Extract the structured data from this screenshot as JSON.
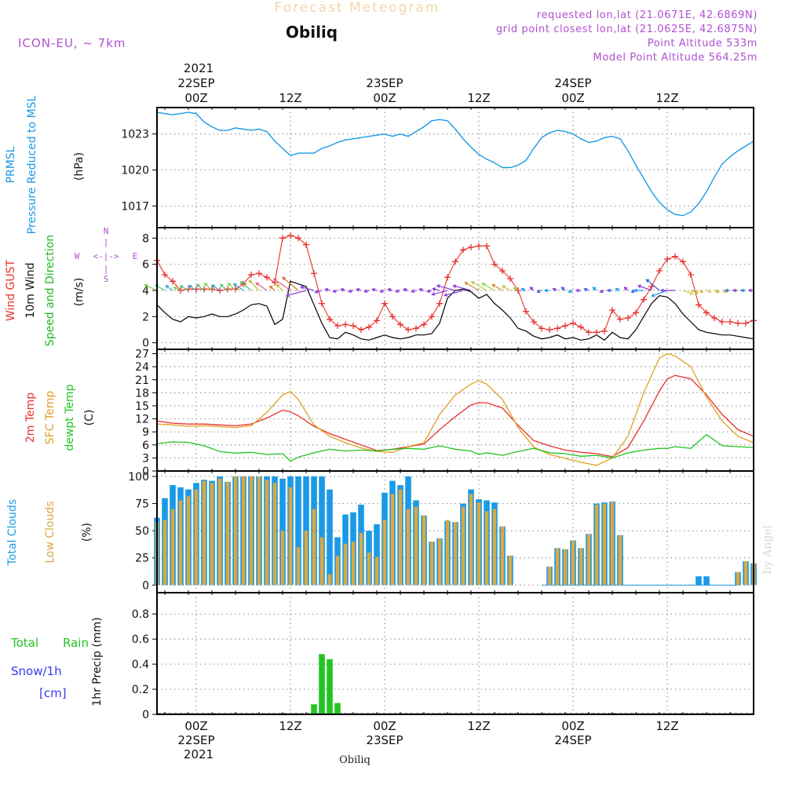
{
  "header": {
    "product": "Forecast Meteogram",
    "location": "Obiliq",
    "model": "ICON-EU, ~ 7km",
    "requested": "requested lon,lat (21.0671E, 42.6869N)",
    "gridpoint": "grid point closest lon,lat (21.0625E, 42.6875N)",
    "point_alt": "Point Altitude 533m",
    "model_alt": "Model Point Altitude 564.25m",
    "watermark": "by Angel",
    "footer_location": "Obiliq"
  },
  "time_axis": {
    "top_year": "2021",
    "top_dates": [
      {
        "t": 0,
        "label": "22SEP"
      },
      {
        "t": 24,
        "label": "23SEP"
      },
      {
        "t": 48,
        "label": "24SEP"
      }
    ],
    "hour_ticks": [
      {
        "t": 0,
        "label": "00Z"
      },
      {
        "t": 12,
        "label": "12Z"
      },
      {
        "t": 24,
        "label": "00Z"
      },
      {
        "t": 36,
        "label": "12Z"
      },
      {
        "t": 48,
        "label": "00Z"
      },
      {
        "t": 60,
        "label": "12Z"
      }
    ],
    "bottom_dates": [
      {
        "t": 0,
        "label": "22SEP"
      },
      {
        "t": 24,
        "label": "23SEP"
      },
      {
        "t": 48,
        "label": "24SEP"
      }
    ],
    "bottom_year": "2021",
    "range": [
      -5,
      71
    ]
  },
  "colors": {
    "pressure": "#1a9ae6",
    "gust": "#e8322e",
    "wind": "#000000",
    "wind_label": "#22b822",
    "temp": "#e8322e",
    "sfc_temp": "#e0a020",
    "dewpt": "#22c422",
    "total_cloud": "#1a9ae6",
    "low_cloud": "#dba840",
    "rain": "#22c422",
    "snow": "#3a3af0",
    "model_text": "#b050d0",
    "compass": "#b050d0",
    "product_title": "#f3d6a8"
  },
  "chart_data": [
    {
      "type": "line",
      "panel": "pressure",
      "ylabel_lines": [
        "PRMSL",
        "Pressure Reduced to MSL"
      ],
      "unit": "(hPa)",
      "yticks": [
        1017,
        1020,
        1023
      ],
      "ylim": [
        1015.2,
        1025.2
      ],
      "x": [
        -5,
        -4,
        -3,
        -2,
        -1,
        0,
        1,
        2,
        3,
        4,
        5,
        6,
        7,
        8,
        9,
        10,
        11,
        12,
        13,
        14,
        15,
        16,
        17,
        18,
        19,
        20,
        21,
        22,
        23,
        24,
        25,
        26,
        27,
        28,
        29,
        30,
        31,
        32,
        33,
        34,
        35,
        36,
        37,
        38,
        39,
        40,
        41,
        42,
        43,
        44,
        45,
        46,
        47,
        48,
        49,
        50,
        51,
        52,
        53,
        54,
        55,
        56,
        57,
        58,
        59,
        60,
        61,
        62,
        63,
        64,
        65,
        66,
        67,
        68,
        69,
        70,
        71
      ],
      "series": [
        {
          "values": [
            1024.8,
            1024.7,
            1024.6,
            1024.7,
            1024.8,
            1024.7,
            1024.0,
            1023.6,
            1023.3,
            1023.3,
            1023.5,
            1023.4,
            1023.3,
            1023.4,
            1023.2,
            1022.4,
            1021.8,
            1021.2,
            1021.4,
            1021.4,
            1021.4,
            1021.8,
            1022.0,
            1022.3,
            1022.5,
            1022.6,
            1022.7,
            1022.8,
            1022.9,
            1023.0,
            1022.8,
            1023.0,
            1022.8,
            1023.2,
            1023.6,
            1024.1,
            1024.2,
            1024.1,
            1023.4,
            1022.6,
            1021.9,
            1021.3,
            1020.9,
            1020.6,
            1020.2,
            1020.2,
            1020.4,
            1020.8,
            1021.8,
            1022.7,
            1023.1,
            1023.3,
            1023.2,
            1023.0,
            1022.6,
            1022.3,
            1022.4,
            1022.7,
            1022.8,
            1022.6,
            1021.6,
            1020.4,
            1019.3,
            1018.2,
            1017.3,
            1016.7,
            1016.3,
            1016.2,
            1016.5,
            1017.2,
            1018.2,
            1019.4,
            1020.5,
            1021.1,
            1021.6,
            1022.0,
            1022.4
          ]
        }
      ]
    },
    {
      "type": "line",
      "panel": "wind",
      "ylabel_lines": [
        "Wind GUST",
        "10m Wind",
        "Speed and Direction"
      ],
      "unit": "(m/s)",
      "compass": {
        "n": "N",
        "s": "S",
        "w": "W",
        "e": "E"
      },
      "yticks": [
        0,
        2,
        4,
        6,
        8
      ],
      "ylim": [
        -0.5,
        8.8
      ],
      "x": [
        -5,
        -4,
        -3,
        -2,
        -1,
        0,
        1,
        2,
        3,
        4,
        5,
        6,
        7,
        8,
        9,
        10,
        11,
        12,
        13,
        14,
        15,
        16,
        17,
        18,
        19,
        20,
        21,
        22,
        23,
        24,
        25,
        26,
        27,
        28,
        29,
        30,
        31,
        32,
        33,
        34,
        35,
        36,
        37,
        38,
        39,
        40,
        41,
        42,
        43,
        44,
        45,
        46,
        47,
        48,
        49,
        50,
        51,
        52,
        53,
        54,
        55,
        56,
        57,
        58,
        59,
        60,
        61,
        62,
        63,
        64,
        65,
        66,
        67,
        68,
        69,
        70,
        71
      ],
      "series": [
        {
          "name": "gust",
          "values": [
            6.3,
            5.2,
            4.7,
            4.0,
            4.1,
            4.1,
            4.1,
            4.1,
            4.0,
            4.1,
            4.1,
            4.5,
            5.2,
            5.3,
            5.0,
            4.6,
            8.0,
            8.2,
            8.0,
            7.5,
            5.3,
            3.0,
            1.8,
            1.3,
            1.4,
            1.3,
            1.0,
            1.2,
            1.7,
            3.0,
            2.0,
            1.4,
            1.0,
            1.1,
            1.4,
            2.0,
            3.0,
            5.0,
            6.2,
            7.1,
            7.3,
            7.4,
            7.4,
            6.0,
            5.5,
            4.9,
            4.0,
            2.4,
            1.6,
            1.1,
            1.0,
            1.1,
            1.3,
            1.5,
            1.2,
            0.8,
            0.8,
            0.9,
            2.5,
            1.8,
            1.9,
            2.3,
            3.3,
            4.3,
            5.5,
            6.4,
            6.6,
            6.2,
            5.2,
            2.9,
            2.3,
            1.9,
            1.6,
            1.6,
            1.5,
            1.5,
            1.7
          ]
        },
        {
          "name": "wind",
          "values": [
            2.9,
            2.3,
            1.8,
            1.6,
            2.0,
            1.9,
            2.0,
            2.2,
            2.0,
            2.0,
            2.2,
            2.5,
            2.9,
            3.0,
            2.8,
            1.4,
            1.8,
            4.7,
            4.5,
            4.3,
            2.9,
            1.5,
            0.4,
            0.3,
            0.8,
            0.6,
            0.3,
            0.2,
            0.4,
            0.6,
            0.4,
            0.3,
            0.4,
            0.6,
            0.6,
            0.7,
            1.5,
            3.4,
            4.0,
            4.1,
            3.9,
            3.4,
            3.7,
            3.0,
            2.5,
            1.9,
            1.1,
            0.9,
            0.5,
            0.3,
            0.4,
            0.6,
            0.3,
            0.4,
            0.2,
            0.3,
            0.6,
            0.2,
            0.8,
            0.4,
            0.3,
            1.0,
            2.0,
            3.0,
            3.6,
            3.5,
            3.0,
            2.2,
            1.6,
            1.0,
            0.8,
            0.7,
            0.6,
            0.6,
            0.5,
            0.4,
            0.3
          ]
        }
      ]
    },
    {
      "type": "line",
      "panel": "temperature",
      "ylabel_lines": [
        "2m Temp",
        "SFC Temp",
        "dewpt Temp"
      ],
      "unit": "(C)",
      "yticks": [
        0,
        3,
        6,
        9,
        12,
        15,
        18,
        21,
        24,
        27
      ],
      "ylim": [
        0,
        28
      ],
      "x": [
        -5,
        -3,
        -1,
        1,
        3,
        5,
        7,
        9,
        11,
        12,
        13,
        15,
        17,
        19,
        21,
        23,
        25,
        27,
        29,
        31,
        33,
        35,
        36,
        37,
        39,
        41,
        43,
        45,
        47,
        49,
        51,
        53,
        55,
        57,
        59,
        60,
        61,
        63,
        65,
        67,
        69,
        71
      ],
      "series": [
        {
          "name": "2m Temp",
          "values": [
            11.5,
            11.0,
            10.8,
            10.8,
            10.6,
            10.4,
            10.8,
            12.2,
            14.0,
            13.6,
            12.7,
            10.3,
            8.6,
            7.3,
            6.0,
            4.7,
            5.0,
            5.6,
            6.2,
            9.5,
            12.5,
            15.2,
            15.7,
            15.7,
            14.5,
            10.5,
            7.0,
            5.8,
            4.8,
            4.3,
            4.0,
            3.3,
            5.4,
            11.5,
            18.4,
            21.2,
            22.0,
            21.2,
            17.5,
            13.0,
            9.5,
            8.0
          ]
        },
        {
          "name": "SFC Temp",
          "values": [
            10.8,
            10.6,
            10.3,
            10.4,
            10.2,
            10.0,
            10.4,
            13.5,
            17.5,
            18.3,
            16.5,
            10.6,
            8.0,
            6.5,
            5.3,
            4.5,
            4.3,
            5.6,
            6.5,
            13.0,
            17.5,
            20.0,
            20.8,
            20.0,
            16.5,
            10.0,
            5.5,
            3.8,
            2.9,
            2.0,
            1.3,
            3.0,
            8.0,
            18.0,
            26.0,
            27.0,
            26.5,
            24.0,
            17.0,
            11.5,
            8.0,
            6.5
          ]
        },
        {
          "name": "dewpt Temp",
          "values": [
            6.3,
            6.7,
            6.6,
            5.8,
            4.5,
            4.1,
            4.3,
            3.8,
            4.0,
            2.3,
            3.2,
            4.2,
            5.0,
            4.6,
            4.8,
            4.6,
            5.0,
            5.2,
            5.0,
            5.8,
            5.0,
            4.6,
            3.8,
            4.2,
            3.6,
            4.5,
            5.2,
            4.2,
            4.0,
            3.4,
            3.6,
            3.0,
            4.2,
            4.8,
            5.2,
            5.2,
            5.6,
            5.2,
            8.4,
            5.8,
            5.6,
            5.4
          ]
        }
      ]
    },
    {
      "type": "bar",
      "panel": "clouds",
      "ylabel_lines": [
        "Total Clouds",
        "Low Clouds"
      ],
      "unit": "(%)",
      "yticks": [
        0,
        25,
        50,
        75,
        100
      ],
      "ylim": [
        -7,
        105
      ],
      "x": [
        -5,
        -4,
        -3,
        -2,
        -1,
        0,
        1,
        2,
        3,
        4,
        5,
        6,
        7,
        8,
        9,
        10,
        11,
        12,
        13,
        14,
        15,
        16,
        17,
        18,
        19,
        20,
        21,
        22,
        23,
        24,
        25,
        26,
        27,
        28,
        29,
        30,
        31,
        32,
        33,
        34,
        35,
        36,
        37,
        38,
        39,
        40,
        41,
        42,
        43,
        44,
        45,
        46,
        47,
        48,
        49,
        50,
        51,
        52,
        53,
        54,
        55,
        56,
        57,
        58,
        59,
        60,
        61,
        62,
        63,
        64,
        65,
        66,
        67,
        68,
        69,
        70,
        71
      ],
      "series": [
        {
          "name": "Total Clouds",
          "values": [
            62,
            80,
            92,
            90,
            88,
            94,
            97,
            96,
            100,
            95,
            100,
            100,
            100,
            100,
            100,
            100,
            98,
            100,
            100,
            100,
            100,
            100,
            88,
            44,
            65,
            67,
            74,
            50,
            56,
            85,
            96,
            92,
            100,
            78,
            64,
            40,
            43,
            59,
            58,
            75,
            88,
            79,
            78,
            76,
            54,
            27,
            0,
            0,
            0,
            0,
            17,
            34,
            33,
            41,
            34,
            47,
            75,
            76,
            77,
            46,
            0,
            0,
            0,
            0,
            0,
            0,
            0,
            0,
            0,
            8,
            8,
            0,
            0,
            0,
            12,
            22,
            20
          ]
        },
        {
          "name": "Low Clouds",
          "values": [
            58,
            60,
            70,
            78,
            82,
            88,
            96,
            94,
            98,
            95,
            100,
            100,
            100,
            100,
            97,
            94,
            50,
            90,
            35,
            50,
            70,
            44,
            10,
            27,
            38,
            40,
            48,
            30,
            26,
            60,
            84,
            88,
            70,
            72,
            64,
            40,
            43,
            60,
            58,
            72,
            84,
            76,
            68,
            70,
            54,
            27,
            0,
            0,
            0,
            0,
            17,
            34,
            33,
            41,
            34,
            47,
            74,
            75,
            77,
            46,
            0,
            0,
            0,
            0,
            0,
            0,
            0,
            0,
            0,
            0,
            0,
            0,
            0,
            0,
            12,
            22,
            20
          ]
        }
      ]
    },
    {
      "type": "bar",
      "panel": "precip",
      "ylabel_lines": [
        "1hr Precip (mm)"
      ],
      "legend_lines": [
        "Total",
        "Rain",
        "Snow/1h",
        "[cm]"
      ],
      "yticks": [
        0,
        0.2,
        0.4,
        0.6,
        0.8
      ],
      "ylim": [
        0,
        0.97
      ],
      "x": [
        15,
        16,
        17,
        18,
        29
      ],
      "series": [
        {
          "name": "Rain",
          "values": [
            0.08,
            0.48,
            0.44,
            0.09,
            0.005
          ]
        }
      ]
    }
  ]
}
